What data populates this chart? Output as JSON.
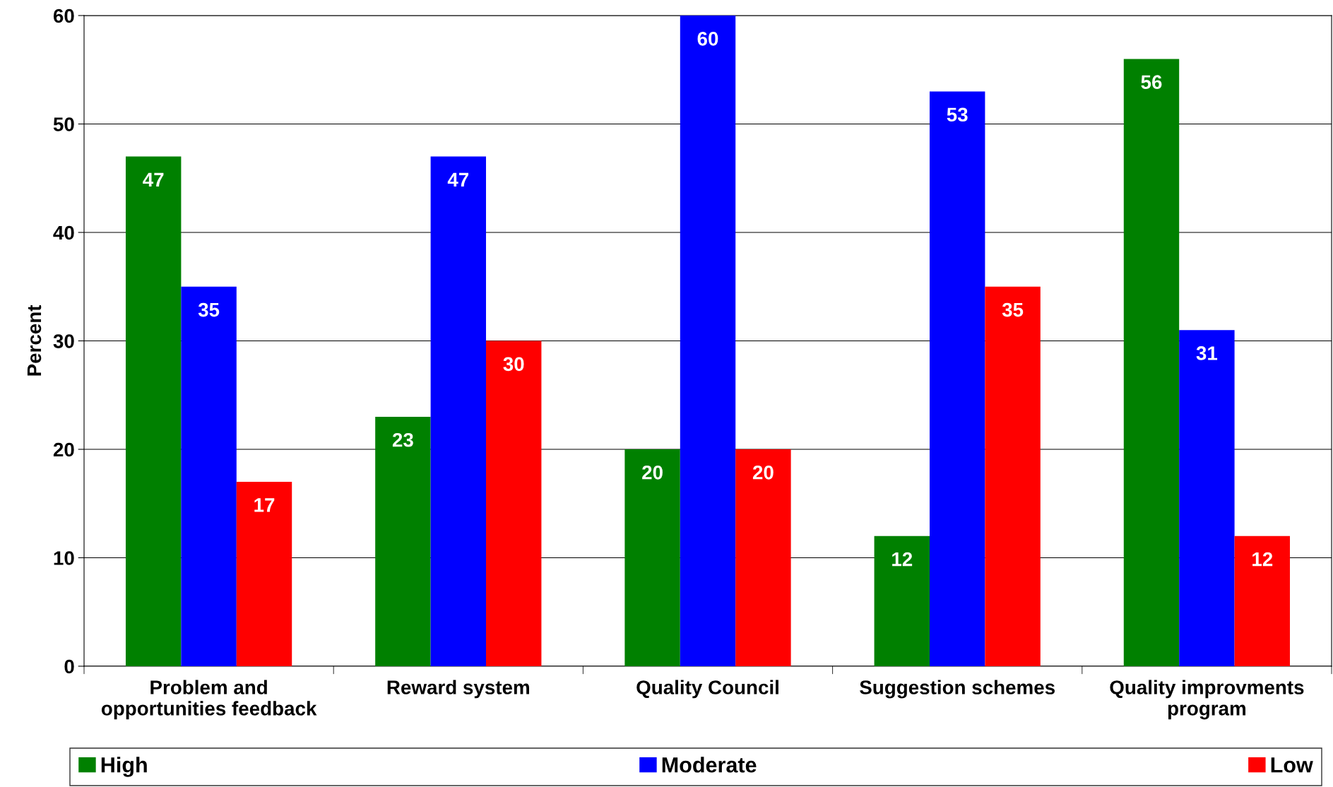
{
  "chart_data": {
    "type": "bar",
    "ylabel": "Percent",
    "categories": [
      "Problem and\nopportunities feedback",
      "Reward system",
      "Quality Council",
      "Suggestion schemes",
      "Quality improvments\nprogram"
    ],
    "series": [
      {
        "name": "High",
        "color": "#008000",
        "values": [
          47,
          23,
          20,
          12,
          56
        ]
      },
      {
        "name": "Moderate",
        "color": "#0000ff",
        "values": [
          35,
          47,
          60,
          53,
          31
        ]
      },
      {
        "name": "Low",
        "color": "#ff0000",
        "values": [
          17,
          30,
          20,
          35,
          12
        ]
      }
    ],
    "ylim": [
      0,
      60
    ],
    "yticks": [
      0,
      10,
      20,
      30,
      40,
      50,
      60
    ],
    "grid": "y",
    "legend": "bottom",
    "data_labels": true
  }
}
